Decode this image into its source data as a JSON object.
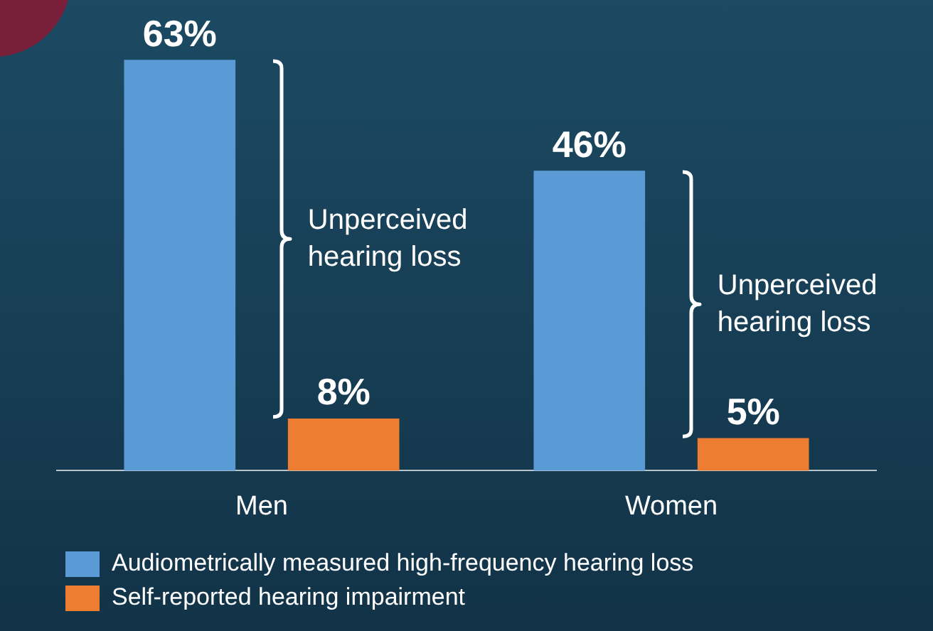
{
  "chart_data": {
    "type": "bar",
    "categories": [
      "Men",
      "Women"
    ],
    "series": [
      {
        "name": "Audiometrically measured high-frequency hearing loss",
        "color": "#5b9bd5",
        "values": [
          63,
          46
        ],
        "value_labels": [
          "63%",
          "46%"
        ]
      },
      {
        "name": "Self-reported hearing impairment",
        "color": "#ed7d31",
        "values": [
          8,
          5
        ],
        "value_labels": [
          "8%",
          "5%"
        ]
      }
    ],
    "legend": "bottom",
    "grid": false,
    "annotations": [
      "Unperceived hearing loss",
      "Unperceived hearing loss"
    ]
  }
}
